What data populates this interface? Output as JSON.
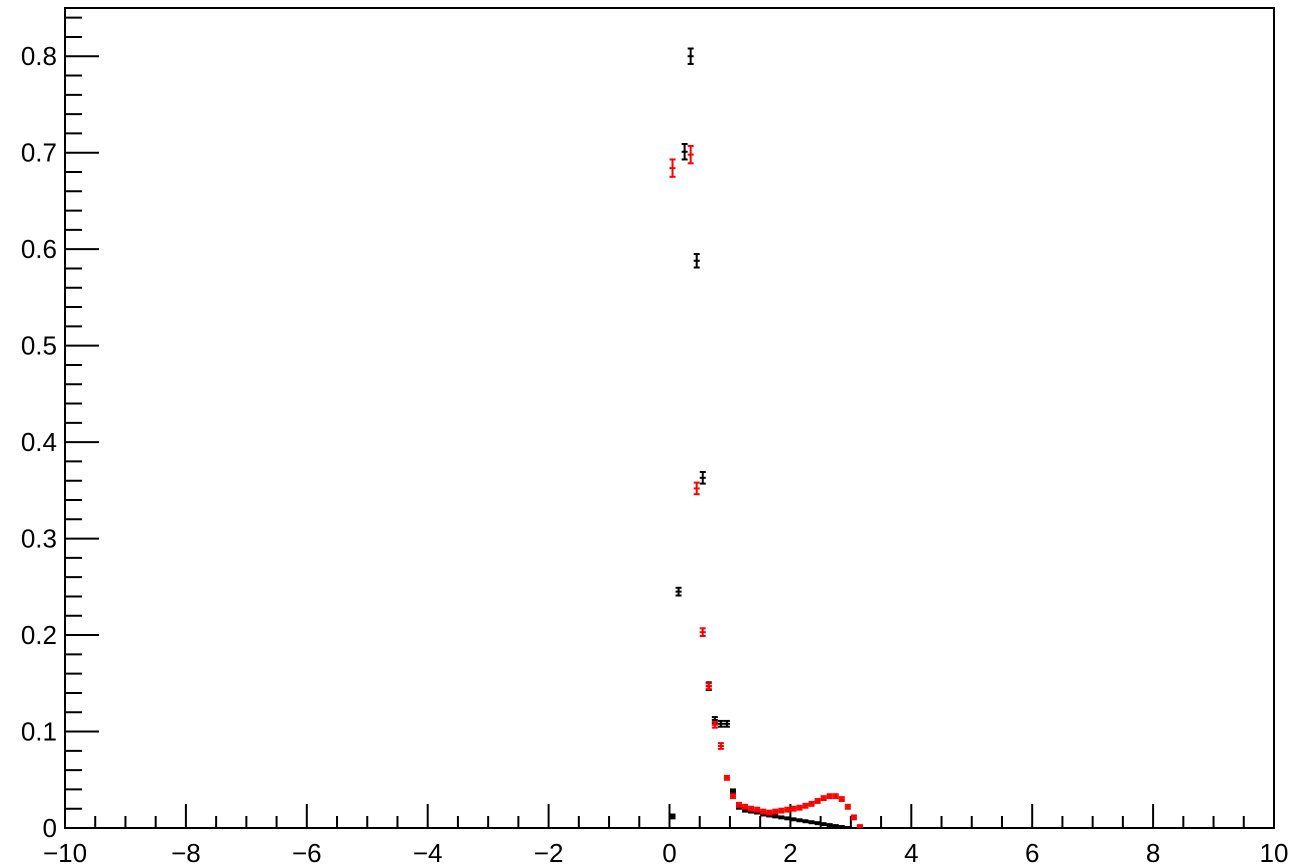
{
  "chart_data": {
    "type": "scatter",
    "title": "",
    "xlabel": "",
    "ylabel": "",
    "xlim": [
      -10,
      10
    ],
    "ylim": [
      0,
      0.85
    ],
    "grid": false,
    "legend": "none",
    "x_ticks": [
      -10,
      -8,
      -6,
      -4,
      -2,
      0,
      2,
      4,
      6,
      8,
      10
    ],
    "x_tick_labels": [
      "−10",
      "−8",
      "−6",
      "−4",
      "−2",
      "0",
      "2",
      "4",
      "6",
      "8",
      "10"
    ],
    "y_ticks": [
      0,
      0.1,
      0.2,
      0.3,
      0.4,
      0.5,
      0.6,
      0.7,
      0.8
    ],
    "y_tick_labels": [
      "0",
      "0.1",
      "0.2",
      "0.3",
      "0.4",
      "0.5",
      "0.6",
      "0.7",
      "0.8"
    ],
    "bin_width": 0.1,
    "series": [
      {
        "color": "#000000",
        "points": [
          {
            "x": 0.05,
            "y": 0.012,
            "err": 0.002
          },
          {
            "x": 0.15,
            "y": 0.245,
            "err": 0.004
          },
          {
            "x": 0.25,
            "y": 0.701,
            "err": 0.008
          },
          {
            "x": 0.35,
            "y": 0.8,
            "err": 0.008
          },
          {
            "x": 0.45,
            "y": 0.588,
            "err": 0.007
          },
          {
            "x": 0.55,
            "y": 0.363,
            "err": 0.006
          },
          {
            "x": 0.65,
            "y": 0.147,
            "err": 0.004
          },
          {
            "x": 0.75,
            "y": 0.112,
            "err": 0.003
          },
          {
            "x": 0.85,
            "y": 0.108,
            "err": 0.003
          },
          {
            "x": 0.95,
            "y": 0.108,
            "err": 0.003
          },
          {
            "x": 1.05,
            "y": 0.038,
            "err": 0.002
          },
          {
            "x": 1.15,
            "y": 0.022,
            "err": 0.002
          },
          {
            "x": 1.25,
            "y": 0.019,
            "err": 0.002
          },
          {
            "x": 1.35,
            "y": 0.017,
            "err": 0.001
          },
          {
            "x": 1.45,
            "y": 0.016,
            "err": 0.001
          },
          {
            "x": 1.55,
            "y": 0.014,
            "err": 0.001
          },
          {
            "x": 1.65,
            "y": 0.013,
            "err": 0.001
          },
          {
            "x": 1.75,
            "y": 0.012,
            "err": 0.001
          },
          {
            "x": 1.85,
            "y": 0.011,
            "err": 0.001
          },
          {
            "x": 1.95,
            "y": 0.01,
            "err": 0.001
          },
          {
            "x": 2.05,
            "y": 0.009,
            "err": 0.001
          },
          {
            "x": 2.15,
            "y": 0.008,
            "err": 0.001
          },
          {
            "x": 2.25,
            "y": 0.007,
            "err": 0.001
          },
          {
            "x": 2.35,
            "y": 0.006,
            "err": 0.001
          },
          {
            "x": 2.45,
            "y": 0.005,
            "err": 0.001
          },
          {
            "x": 2.55,
            "y": 0.004,
            "err": 0.001
          },
          {
            "x": 2.65,
            "y": 0.003,
            "err": 0.001
          },
          {
            "x": 2.75,
            "y": 0.002,
            "err": 0.001
          },
          {
            "x": 2.85,
            "y": 0.001,
            "err": 0.001
          },
          {
            "x": 2.95,
            "y": 0.0005,
            "err": 0.0005
          }
        ]
      },
      {
        "color": "#ff0000",
        "points": [
          {
            "x": 0.05,
            "y": 0.684,
            "err": 0.009
          },
          {
            "x": 0.35,
            "y": 0.698,
            "err": 0.009
          },
          {
            "x": 0.45,
            "y": 0.352,
            "err": 0.006
          },
          {
            "x": 0.55,
            "y": 0.203,
            "err": 0.004
          },
          {
            "x": 0.65,
            "y": 0.147,
            "err": 0.003
          },
          {
            "x": 0.75,
            "y": 0.107,
            "err": 0.003
          },
          {
            "x": 0.85,
            "y": 0.085,
            "err": 0.003
          },
          {
            "x": 0.95,
            "y": 0.052,
            "err": 0.002
          },
          {
            "x": 1.05,
            "y": 0.033,
            "err": 0.002
          },
          {
            "x": 1.15,
            "y": 0.024,
            "err": 0.002
          },
          {
            "x": 1.25,
            "y": 0.022,
            "err": 0.002
          },
          {
            "x": 1.35,
            "y": 0.02,
            "err": 0.002
          },
          {
            "x": 1.45,
            "y": 0.019,
            "err": 0.002
          },
          {
            "x": 1.55,
            "y": 0.017,
            "err": 0.002
          },
          {
            "x": 1.65,
            "y": 0.016,
            "err": 0.002
          },
          {
            "x": 1.75,
            "y": 0.017,
            "err": 0.002
          },
          {
            "x": 1.85,
            "y": 0.018,
            "err": 0.002
          },
          {
            "x": 1.95,
            "y": 0.019,
            "err": 0.002
          },
          {
            "x": 2.05,
            "y": 0.02,
            "err": 0.002
          },
          {
            "x": 2.15,
            "y": 0.021,
            "err": 0.002
          },
          {
            "x": 2.25,
            "y": 0.023,
            "err": 0.002
          },
          {
            "x": 2.35,
            "y": 0.025,
            "err": 0.002
          },
          {
            "x": 2.45,
            "y": 0.028,
            "err": 0.002
          },
          {
            "x": 2.55,
            "y": 0.031,
            "err": 0.002
          },
          {
            "x": 2.65,
            "y": 0.033,
            "err": 0.002
          },
          {
            "x": 2.75,
            "y": 0.033,
            "err": 0.002
          },
          {
            "x": 2.85,
            "y": 0.03,
            "err": 0.002
          },
          {
            "x": 2.95,
            "y": 0.022,
            "err": 0.002
          },
          {
            "x": 3.05,
            "y": 0.011,
            "err": 0.002
          },
          {
            "x": 3.15,
            "y": 0.002,
            "err": 0.001
          }
        ]
      }
    ]
  }
}
